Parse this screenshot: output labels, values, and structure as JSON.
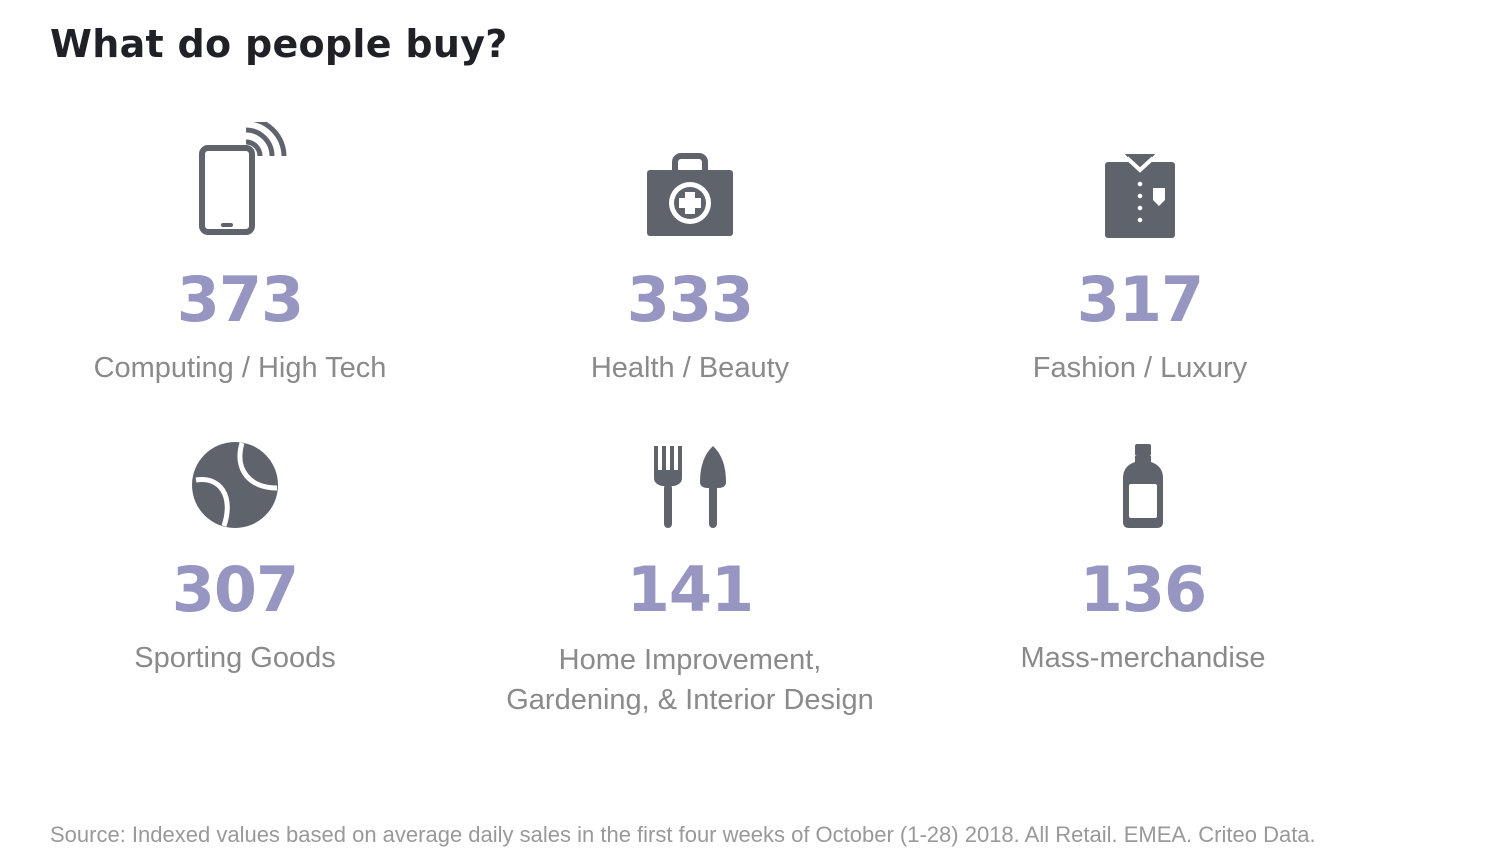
{
  "title": "What do people buy?",
  "accent_color": "#9795c2",
  "icon_color": "#5f646c",
  "categories": [
    {
      "value": "373",
      "label": "Computing / High Tech",
      "icon": "tablet-signal-icon"
    },
    {
      "value": "333",
      "label": "Health / Beauty",
      "icon": "first-aid-kit-icon"
    },
    {
      "value": "317",
      "label": "Fashion / Luxury",
      "icon": "shirt-icon"
    },
    {
      "value": "307",
      "label": "Sporting Goods",
      "icon": "tennis-ball-icon"
    },
    {
      "value": "141",
      "label_line1": "Home Improvement,",
      "label_line2": "Gardening, & Interior Design",
      "icon": "fork-trowel-icon"
    },
    {
      "value": "136",
      "label": "Mass-merchandise",
      "icon": "bottle-icon"
    }
  ],
  "source": "Source: Indexed values based on average daily sales in the first four weeks of October (1-28) 2018. All Retail. EMEA. Criteo Data."
}
